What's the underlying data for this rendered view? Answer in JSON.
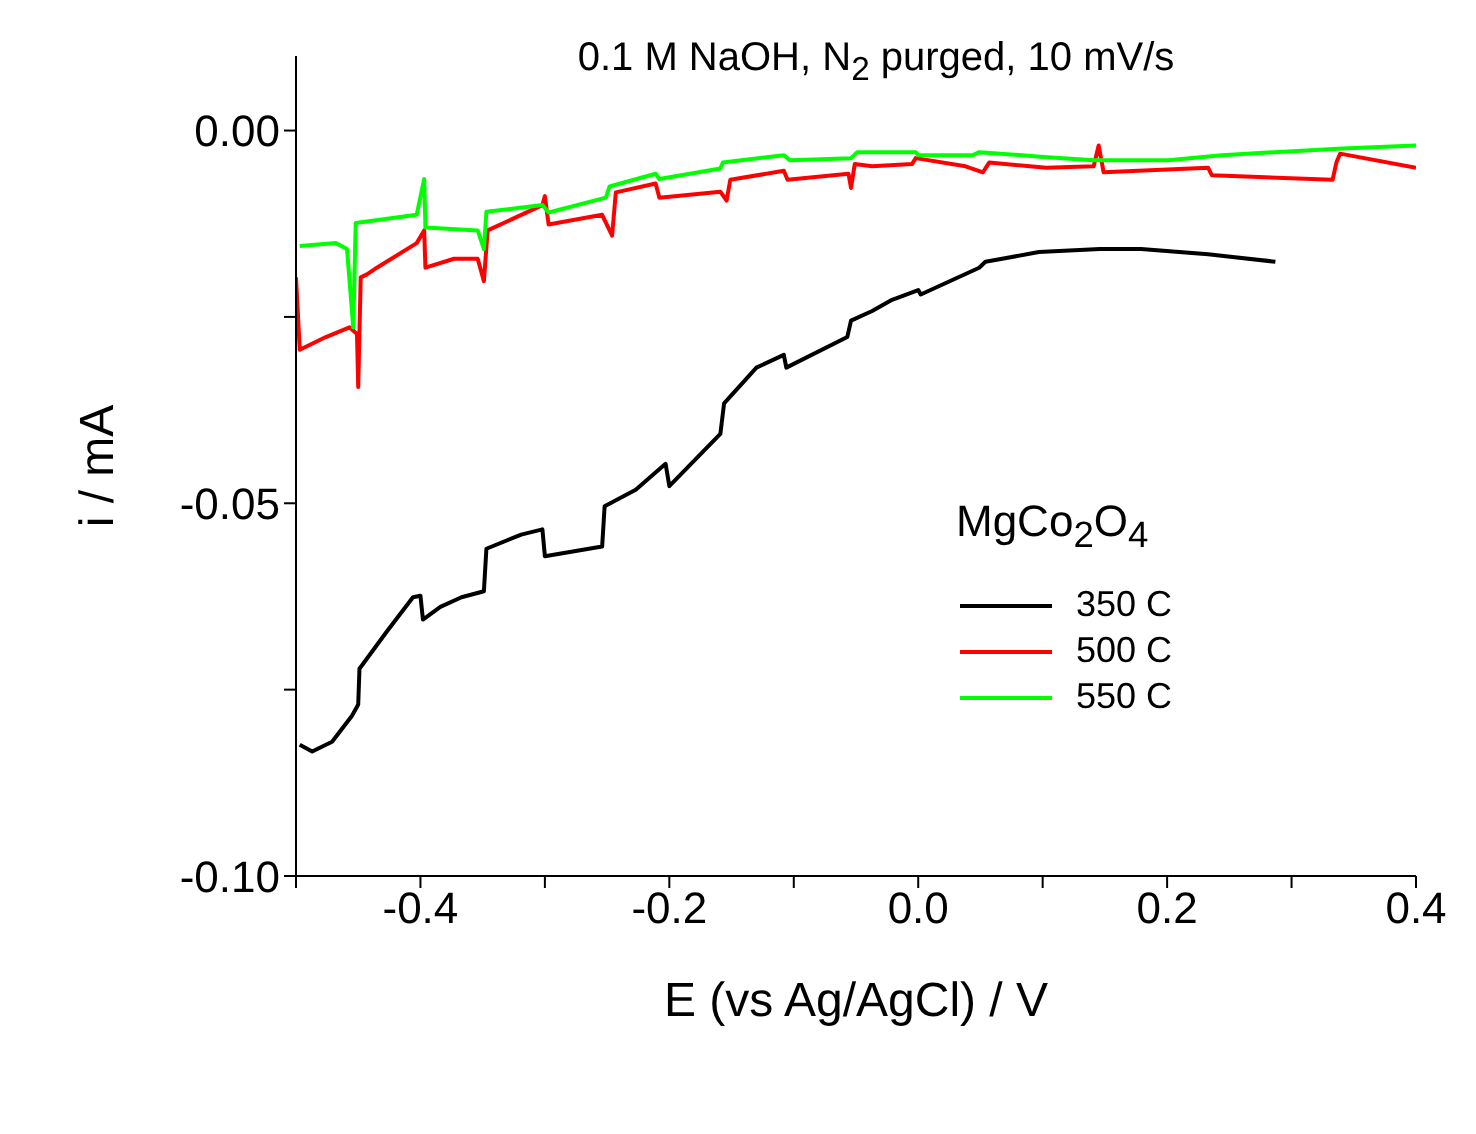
{
  "chart_data": {
    "type": "line",
    "title": "0.1 M NaOH, N$_{2}$ purged, 10 mV/s",
    "xlabel": "E (vs Ag/AgCl) / V",
    "ylabel": "i / mA",
    "legend_title": "MgCo$_{2}$O$_{4}$",
    "legend": "right",
    "marker": "none",
    "line_style": "solid",
    "xlim": [
      -0.5,
      0.4
    ],
    "ylim": [
      -0.1,
      0.01
    ],
    "xticks": [
      {
        "value": -0.5,
        "label": null
      },
      {
        "value": -0.4,
        "label": "-0.4"
      },
      {
        "value": -0.3,
        "label": null
      },
      {
        "value": -0.2,
        "label": "-0.2"
      },
      {
        "value": -0.1,
        "label": null
      },
      {
        "value": 0,
        "label": "0.0"
      },
      {
        "value": 0.1,
        "label": null
      },
      {
        "value": 0.2,
        "label": "0.2"
      },
      {
        "value": 0.3,
        "label": null
      },
      {
        "value": 0.4,
        "label": "0.4"
      }
    ],
    "yticks": [
      {
        "value": -0.1,
        "label": "-0.10"
      },
      {
        "value": -0.075,
        "label": null
      },
      {
        "value": -0.05,
        "label": "-0.05"
      },
      {
        "value": -0.025,
        "label": null
      },
      {
        "value": 0,
        "label": "0.00"
      }
    ],
    "series": [
      {
        "name": "350 C",
        "color": "#000000",
        "x": [
          -0.497,
          -0.487,
          -0.471,
          -0.455,
          -0.45,
          -0.449,
          -0.427,
          -0.406,
          -0.4,
          -0.398,
          -0.384,
          -0.367,
          -0.349,
          -0.347,
          -0.319,
          -0.302,
          -0.3,
          -0.254,
          -0.252,
          -0.227,
          -0.203,
          -0.2,
          -0.159,
          -0.156,
          -0.13,
          -0.108,
          -0.106,
          -0.057,
          -0.054,
          -0.037,
          -0.021,
          0,
          0.002,
          0.049,
          0.054,
          0.097,
          0.146,
          0.179,
          0.233,
          0.287
        ],
        "values": [
          -0.0824,
          -0.0833,
          -0.082,
          -0.0785,
          -0.077,
          -0.0722,
          -0.0672,
          -0.0626,
          -0.0624,
          -0.0656,
          -0.0639,
          -0.0626,
          -0.0618,
          -0.0561,
          -0.0542,
          -0.0535,
          -0.0571,
          -0.0558,
          -0.0504,
          -0.0482,
          -0.0447,
          -0.0477,
          -0.0407,
          -0.0366,
          -0.0318,
          -0.0301,
          -0.0318,
          -0.0277,
          -0.0255,
          -0.0242,
          -0.0227,
          -0.0214,
          -0.022,
          -0.0184,
          -0.0176,
          -0.0163,
          -0.0159,
          -0.0159,
          -0.0166,
          -0.0176
        ]
      },
      {
        "name": "500 C",
        "color": "#ff0000",
        "x": [
          -0.5,
          -0.497,
          -0.476,
          -0.457,
          -0.451,
          -0.45,
          -0.448,
          -0.443,
          -0.435,
          -0.403,
          -0.397,
          -0.396,
          -0.373,
          -0.354,
          -0.349,
          -0.346,
          -0.302,
          -0.3,
          -0.297,
          -0.254,
          -0.246,
          -0.243,
          -0.211,
          -0.208,
          -0.159,
          -0.154,
          -0.151,
          -0.108,
          -0.105,
          -0.056,
          -0.054,
          -0.051,
          -0.037,
          -0.005,
          -0.002,
          0.038,
          0.052,
          0.057,
          0.103,
          0.141,
          0.145,
          0.149,
          0.233,
          0.236,
          0.333,
          0.336,
          0.339,
          0.4
        ],
        "values": [
          -0.0197,
          -0.0294,
          -0.0277,
          -0.0264,
          -0.0273,
          -0.0344,
          -0.0197,
          -0.0193,
          -0.0184,
          -0.0151,
          -0.0134,
          -0.0184,
          -0.0172,
          -0.0172,
          -0.0202,
          -0.0134,
          -0.01,
          -0.0088,
          -0.0126,
          -0.0113,
          -0.0141,
          -0.0083,
          -0.0071,
          -0.009,
          -0.0082,
          -0.0094,
          -0.0066,
          -0.0054,
          -0.0066,
          -0.0058,
          -0.0077,
          -0.0045,
          -0.0048,
          -0.0045,
          -0.0037,
          -0.0048,
          -0.0056,
          -0.0043,
          -0.005,
          -0.0048,
          -0.002,
          -0.0056,
          -0.005,
          -0.006,
          -0.0066,
          -0.0043,
          -0.0031,
          -0.005
        ]
      },
      {
        "name": "550 C",
        "color": "#00ff00",
        "x": [
          -0.497,
          -0.468,
          -0.459,
          -0.454,
          -0.452,
          -0.403,
          -0.397,
          -0.396,
          -0.354,
          -0.349,
          -0.347,
          -0.302,
          -0.297,
          -0.251,
          -0.248,
          -0.211,
          -0.208,
          -0.159,
          -0.157,
          -0.108,
          -0.103,
          -0.054,
          -0.049,
          -0.002,
          0,
          0.044,
          0.049,
          0.098,
          0.141,
          0.201,
          0.244,
          0.341,
          0.4
        ],
        "values": [
          -0.0155,
          -0.0151,
          -0.0159,
          -0.0264,
          -0.0124,
          -0.0113,
          -0.0065,
          -0.013,
          -0.0134,
          -0.0159,
          -0.0109,
          -0.01,
          -0.011,
          -0.009,
          -0.0075,
          -0.0058,
          -0.0065,
          -0.0051,
          -0.0043,
          -0.0033,
          -0.004,
          -0.0037,
          -0.0029,
          -0.0029,
          -0.0033,
          -0.0033,
          -0.0029,
          -0.0035,
          -0.004,
          -0.004,
          -0.0033,
          -0.0024,
          -0.002
        ]
      }
    ]
  }
}
